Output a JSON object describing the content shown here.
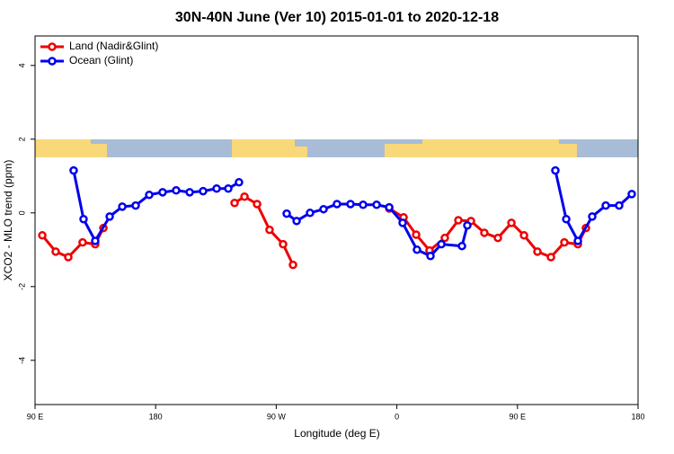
{
  "chart_data": {
    "type": "line",
    "title": "30N-40N June (Ver 10)   2015-01-01 to 2020-12-18",
    "x_label": "Longitude (deg E)",
    "y_label": "XCO2 - MLO trend (ppm)",
    "xlim": [
      90,
      540
    ],
    "xticks": [
      {
        "value": 90,
        "label": "90 E"
      },
      {
        "value": 180,
        "label": "180"
      },
      {
        "value": 270,
        "label": "90 W"
      },
      {
        "value": 360,
        "label": "0"
      },
      {
        "value": 450,
        "label": "90 E"
      },
      {
        "value": 540,
        "label": "180"
      }
    ],
    "ylim": [
      -5.2,
      4.8
    ],
    "yticks": [
      -4,
      -2,
      0,
      2,
      4
    ],
    "legend": "top-left",
    "series": [
      {
        "name": "Land (Nadir&Glint)",
        "color": "#ee0000",
        "x": [
          95.4,
          105.4,
          114.8,
          125.5,
          134.9,
          141.0,
          null,
          238.9,
          246.3,
          255.7,
          265.0,
          275.1,
          282.5,
          null,
          354.3,
          365.0,
          374.4,
          384.4,
          395.8,
          405.9,
          415.3,
          425.3,
          435.4,
          445.5,
          454.9,
          464.9,
          475.0,
          485.0,
          495.1,
          501.1
        ],
        "values": [
          -0.61,
          -1.05,
          -1.2,
          -0.8,
          -0.85,
          -0.41,
          null,
          0.27,
          0.44,
          0.24,
          -0.46,
          -0.85,
          -1.41,
          null,
          0.12,
          -0.12,
          -0.59,
          -1.02,
          -0.68,
          -0.2,
          -0.22,
          -0.54,
          -0.68,
          -0.27,
          -0.61,
          -1.05,
          -1.2,
          -0.8,
          -0.85,
          -0.41
        ]
      },
      {
        "name": "Ocean (Glint)",
        "color": "#0000ee",
        "x": [
          118.8,
          126.2,
          134.9,
          145.7,
          155.1,
          165.1,
          175.2,
          185.2,
          195.3,
          205.4,
          215.4,
          225.5,
          234.2,
          242.2,
          null,
          277.8,
          285.2,
          295.2,
          305.3,
          315.3,
          325.4,
          334.8,
          344.9,
          354.3,
          364.3,
          375.0,
          385.1,
          393.2,
          408.6,
          412.6,
          null,
          478.3,
          486.4,
          495.1,
          505.8,
          515.9,
          525.9,
          535.3
        ],
        "values": [
          1.15,
          -0.17,
          -0.76,
          -0.1,
          0.17,
          0.2,
          0.49,
          0.56,
          0.61,
          0.56,
          0.59,
          0.66,
          0.66,
          0.83,
          null,
          -0.02,
          -0.22,
          0.0,
          0.1,
          0.24,
          0.24,
          0.22,
          0.22,
          0.15,
          -0.27,
          -1.0,
          -1.17,
          -0.85,
          -0.9,
          -0.34,
          null,
          1.15,
          -0.17,
          -0.76,
          -0.1,
          0.2,
          0.2,
          0.51
        ]
      }
    ]
  }
}
